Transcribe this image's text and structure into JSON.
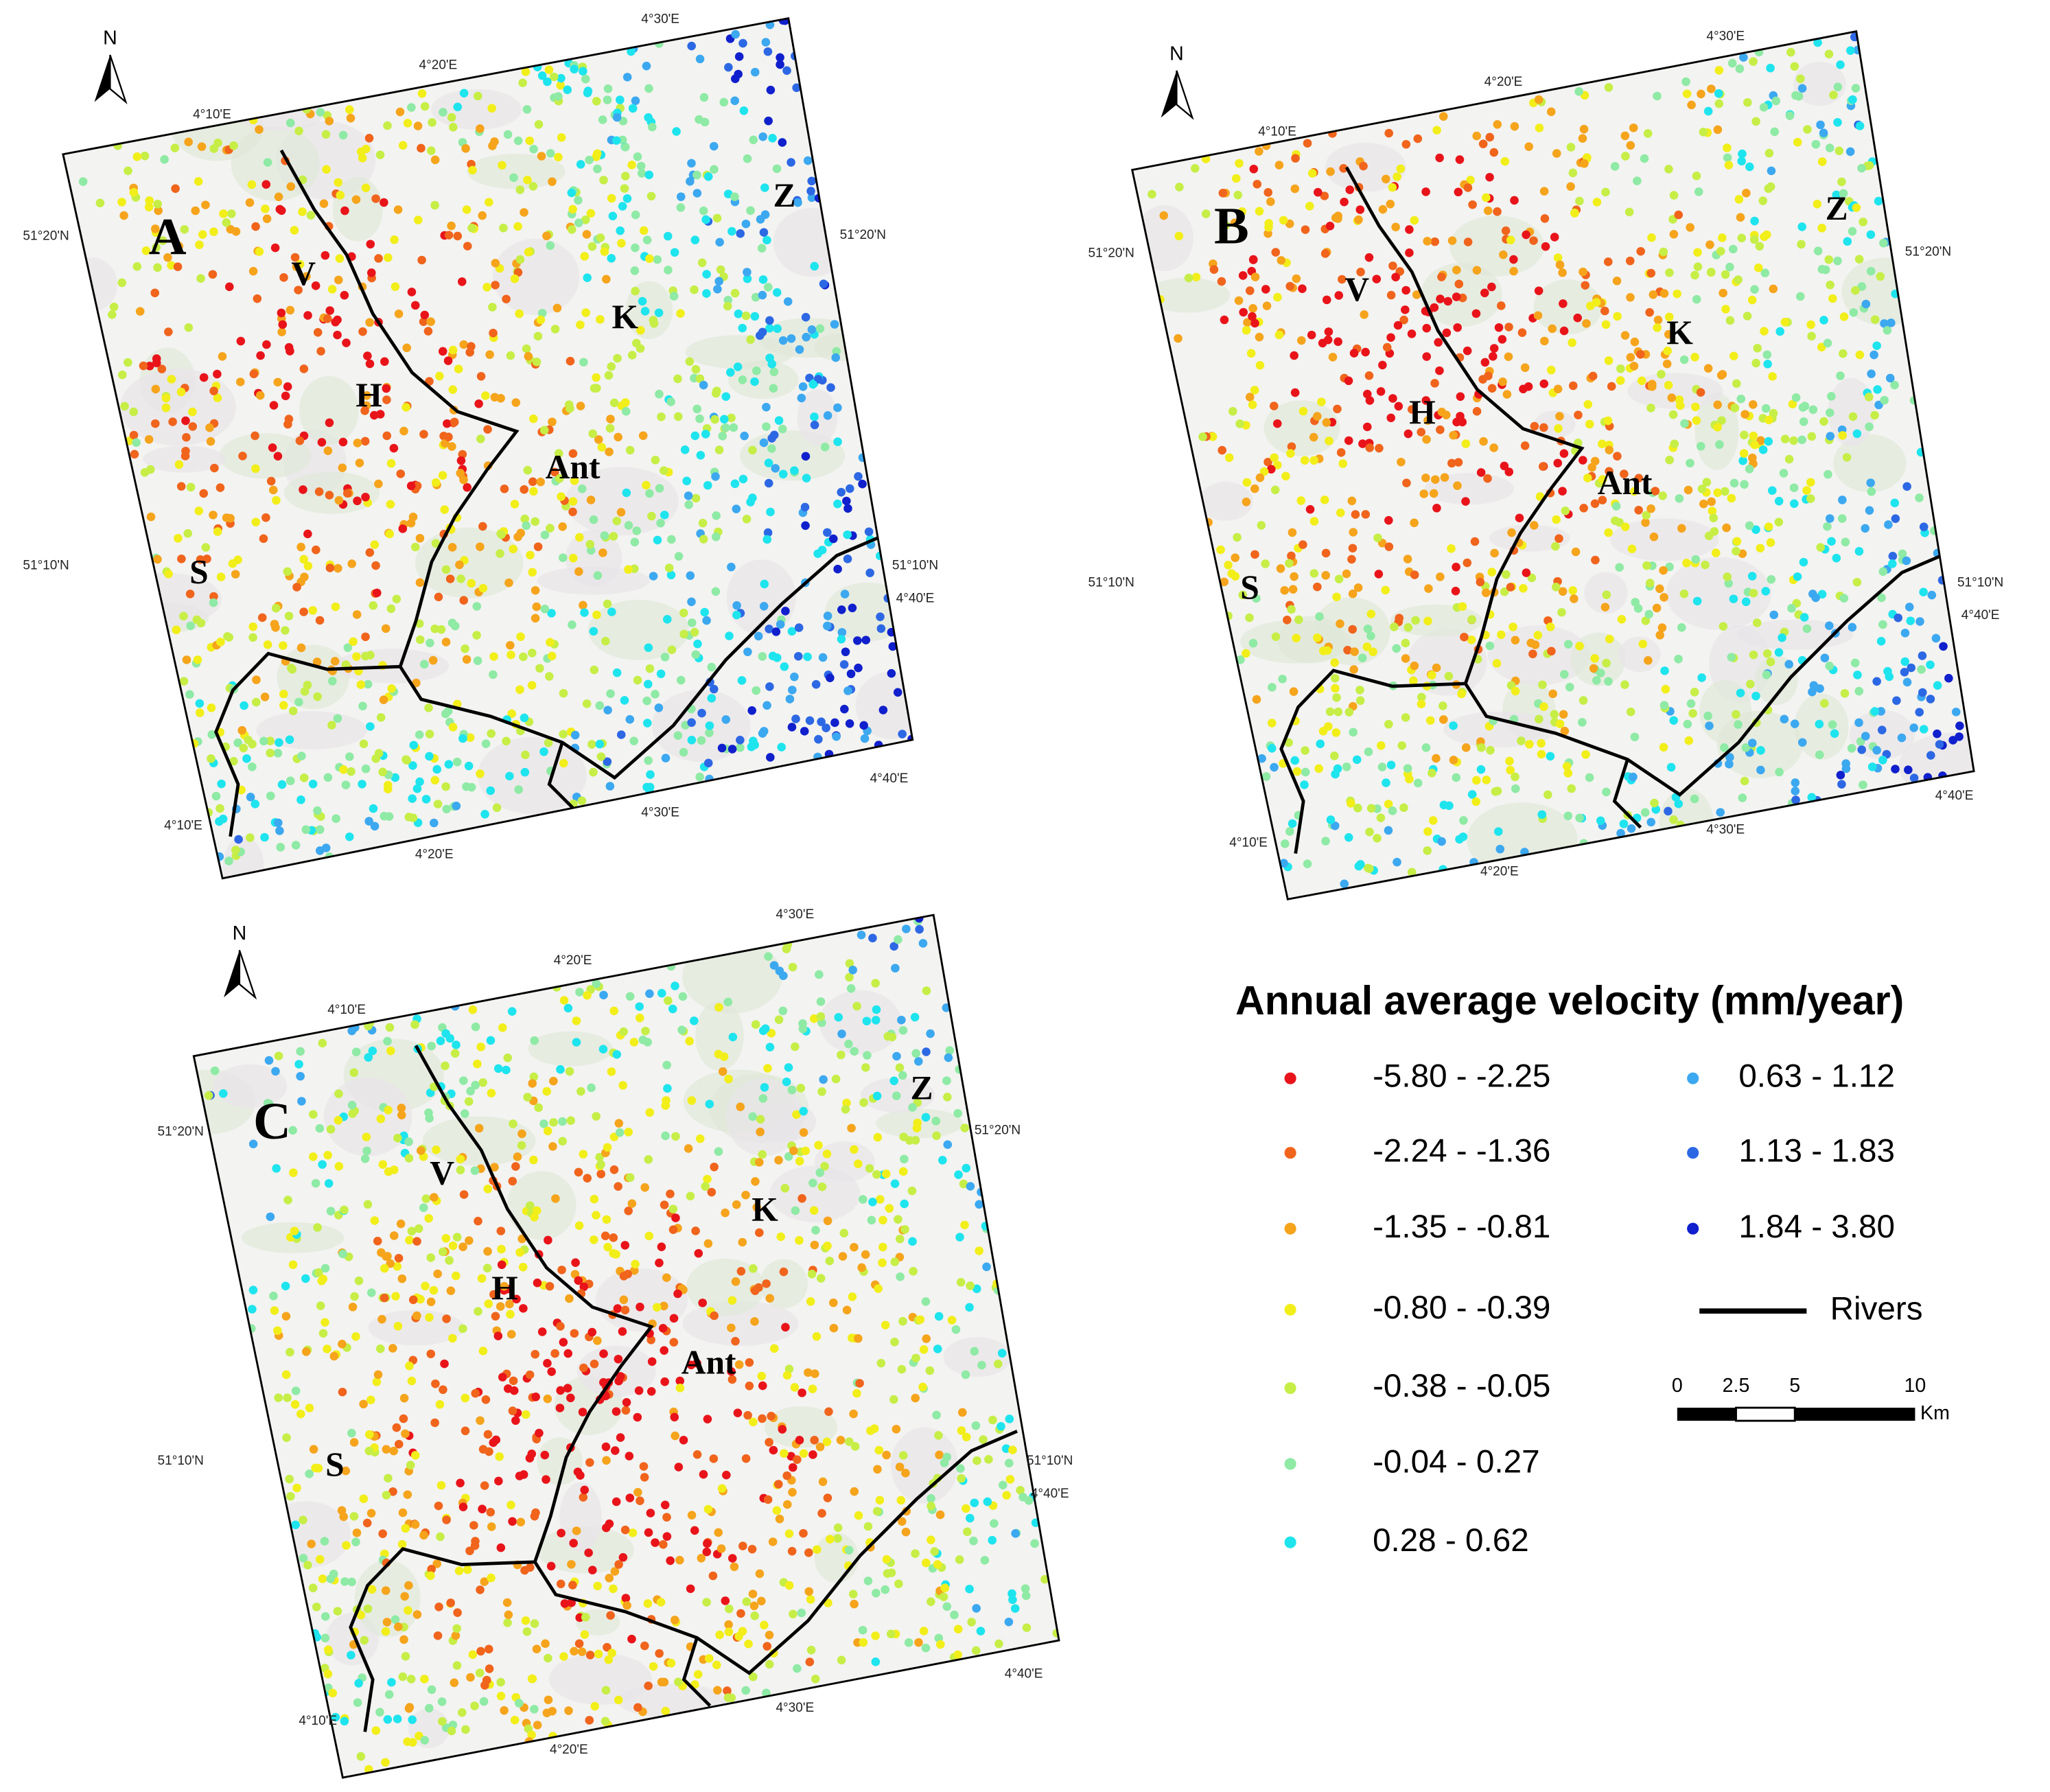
{
  "panels": [
    {
      "label": "A",
      "north": "N",
      "places": [
        "V",
        "H",
        "K",
        "Z",
        "Ant",
        "S"
      ],
      "coords": [
        "4°10'E",
        "4°20'E",
        "4°30'E",
        "51°20'N",
        "51°20'N",
        "51°10'N",
        "51°10'N",
        "4°40'E",
        "4°10'E",
        "4°20'E",
        "4°30'E",
        "4°40'E"
      ]
    },
    {
      "label": "B",
      "north": "N",
      "places": [
        "V",
        "H",
        "K",
        "Z",
        "Ant",
        "S"
      ],
      "coords": [
        "4°10'E",
        "4°20'E",
        "4°30'E",
        "51°20'N",
        "51°20'N",
        "51°10'N",
        "51°10'N",
        "4°40'E",
        "4°10'E",
        "4°20'E",
        "4°30'E",
        "4°40'E"
      ]
    },
    {
      "label": "C",
      "north": "N",
      "places": [
        "V",
        "H",
        "K",
        "Z",
        "Ant",
        "S"
      ],
      "coords": [
        "4°10'E",
        "4°20'E",
        "4°30'E",
        "51°20'N",
        "51°20'N",
        "51°10'N",
        "51°10'N",
        "4°40'E",
        "4°10'E",
        "4°20'E",
        "4°30'E",
        "4°40'E"
      ]
    }
  ],
  "legend": {
    "title": "Annual average velocity (mm/year)",
    "classes": [
      {
        "label": "-5.80 - -2.25",
        "color": "#e8141a"
      },
      {
        "label": "-2.24 - -1.36",
        "color": "#f0641c"
      },
      {
        "label": "-1.35 - -0.81",
        "color": "#f5a41c"
      },
      {
        "label": "-0.80 - -0.39",
        "color": "#f2ee1a"
      },
      {
        "label": "-0.38 - -0.05",
        "color": "#c6ee46"
      },
      {
        "label": "-0.04 - 0.27",
        "color": "#8eeaa4"
      },
      {
        "label": "0.28 - 0.62",
        "color": "#1ee4ee"
      },
      {
        "label": "0.63 - 1.12",
        "color": "#3ca8f0"
      },
      {
        "label": "1.13 - 1.83",
        "color": "#2d68e4"
      },
      {
        "label": "1.84 - 3.80",
        "color": "#1020cc"
      }
    ],
    "rivers": "Rivers"
  },
  "scale_bar": {
    "ticks": [
      "0",
      "2.5",
      "5",
      "10"
    ],
    "unit": "Km"
  }
}
